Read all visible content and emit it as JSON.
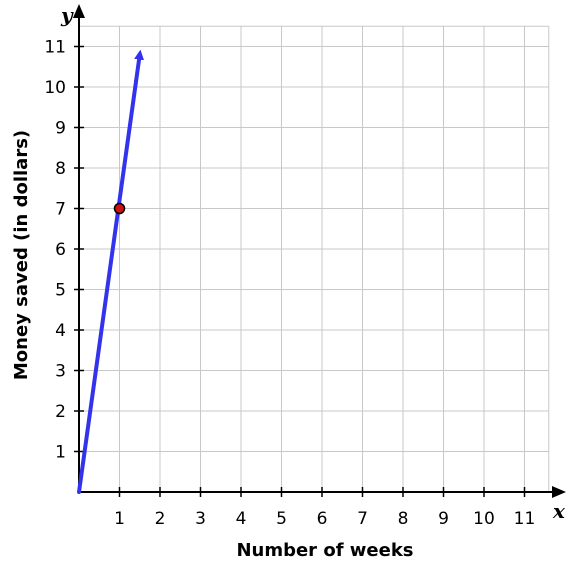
{
  "chart_data": {
    "type": "line",
    "xlabel": "Number of weeks",
    "ylabel": "Money saved (in dollars)",
    "x_axis_var": "x",
    "y_axis_var": "y",
    "xlim": [
      0,
      11.5
    ],
    "ylim": [
      0,
      11.5
    ],
    "x_ticks": [
      "1",
      "2",
      "3",
      "4",
      "5",
      "6",
      "7",
      "8",
      "9",
      "10",
      "11"
    ],
    "y_ticks": [
      "1",
      "2",
      "3",
      "4",
      "5",
      "6",
      "7",
      "8",
      "9",
      "10",
      "11"
    ],
    "grid": true,
    "series": [
      {
        "x": [
          0,
          1.5
        ],
        "y": [
          0,
          10.8
        ],
        "color": "#3333ee",
        "arrow_end": true
      }
    ],
    "points": [
      {
        "x": 1,
        "y": 7,
        "color": "#cc1111"
      }
    ]
  }
}
